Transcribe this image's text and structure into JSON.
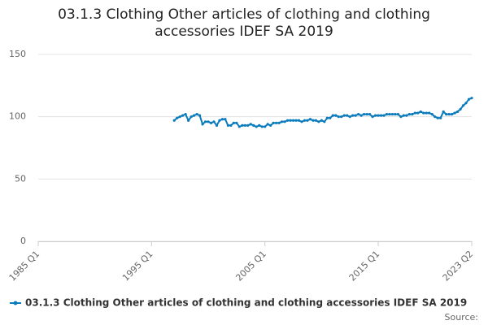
{
  "chart_data": {
    "type": "line",
    "title": "03.1.3 Clothing Other articles of clothing and clothing accessories IDEF SA 2019",
    "source": "Source:",
    "categories": [
      "1985 Q1",
      null,
      null,
      null,
      null,
      null,
      null,
      null,
      null,
      null,
      null,
      null,
      null,
      null,
      null,
      null,
      null,
      null,
      null,
      null,
      null,
      null,
      null,
      null,
      null,
      null,
      null,
      null,
      null,
      null,
      null,
      null,
      null,
      null,
      null,
      null,
      null,
      null,
      null,
      null,
      "1995 Q1",
      null,
      null,
      null,
      null,
      null,
      null,
      null,
      null,
      null,
      null,
      null,
      null,
      null,
      null,
      null,
      null,
      null,
      null,
      null,
      null,
      null,
      null,
      null,
      null,
      null,
      null,
      null,
      null,
      null,
      null,
      null,
      null,
      null,
      null,
      null,
      null,
      null,
      null,
      null,
      "2005 Q1",
      null,
      null,
      null,
      null,
      null,
      null,
      null,
      null,
      null,
      null,
      null,
      null,
      null,
      null,
      null,
      null,
      null,
      null,
      null,
      null,
      null,
      null,
      null,
      null,
      null,
      null,
      null,
      null,
      null,
      null,
      null,
      null,
      null,
      null,
      null,
      null,
      null,
      null,
      null,
      "2015 Q1",
      null,
      null,
      null,
      null,
      null,
      null,
      null,
      null,
      null,
      null,
      null,
      null,
      null,
      null,
      null,
      null,
      null,
      null,
      null,
      null,
      null,
      null,
      null,
      null,
      null,
      null,
      null,
      null,
      null,
      null,
      null,
      null,
      "2023 Q2"
    ],
    "series": [
      {
        "name": "03.1.3 Clothing Other articles of clothing and clothing accessories IDEF SA 2019",
        "color": "#0a7bbd",
        "values": [
          null,
          null,
          null,
          null,
          null,
          null,
          null,
          null,
          null,
          null,
          null,
          null,
          null,
          null,
          null,
          null,
          null,
          null,
          null,
          null,
          null,
          null,
          null,
          null,
          null,
          null,
          null,
          null,
          null,
          null,
          null,
          null,
          null,
          null,
          null,
          null,
          null,
          null,
          null,
          null,
          null,
          null,
          null,
          null,
          null,
          null,
          null,
          null,
          97,
          99,
          100,
          101,
          102,
          97,
          100,
          101,
          102,
          101,
          94,
          96,
          96,
          95,
          96,
          93,
          97,
          98,
          98,
          93,
          93,
          95,
          95,
          92,
          93,
          93,
          93,
          94,
          93,
          92,
          93,
          92,
          92,
          94,
          93,
          95,
          95,
          95,
          96,
          96,
          97,
          97,
          97,
          97,
          97,
          96,
          97,
          97,
          98,
          97,
          97,
          96,
          97,
          96,
          99,
          99,
          101,
          101,
          100,
          100,
          101,
          101,
          100,
          101,
          101,
          102,
          101,
          102,
          102,
          102,
          100,
          101,
          101,
          101,
          101,
          102,
          102,
          102,
          102,
          102,
          100,
          101,
          101,
          102,
          102,
          103,
          103,
          104,
          103,
          103,
          103,
          102,
          100,
          99,
          99,
          104,
          102,
          102,
          102,
          103,
          104,
          106,
          109,
          111,
          114,
          115
        ]
      }
    ],
    "ylim": [
      0,
      150
    ],
    "yticks": [
      0,
      50,
      100,
      150
    ],
    "grid": true
  }
}
